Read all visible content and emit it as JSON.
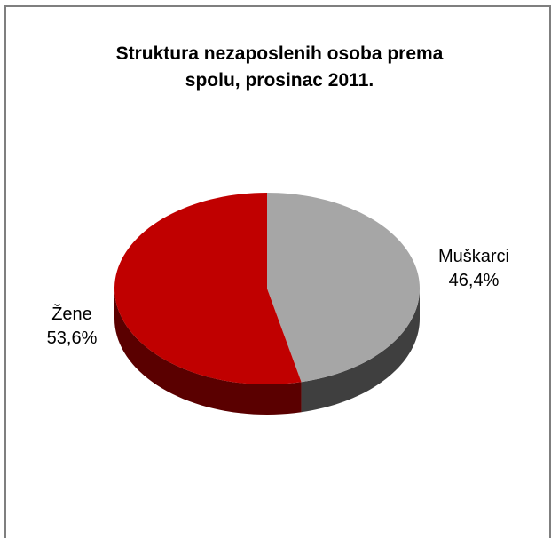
{
  "chart_data": {
    "type": "pie",
    "title_lines": [
      "Struktura nezaposlenih osoba prema",
      "spolu, prosinac 2011."
    ],
    "slices": [
      {
        "name": "Muškarci",
        "value": 46.4,
        "label": "46,4%",
        "color": "#a6a6a6",
        "side_color": "#3f3f3f"
      },
      {
        "name": "Žene",
        "value": 53.6,
        "label": "53,6%",
        "color": "#c00000",
        "side_color": "#5a0000"
      }
    ],
    "legend": "none",
    "style": "3d-tilted"
  }
}
